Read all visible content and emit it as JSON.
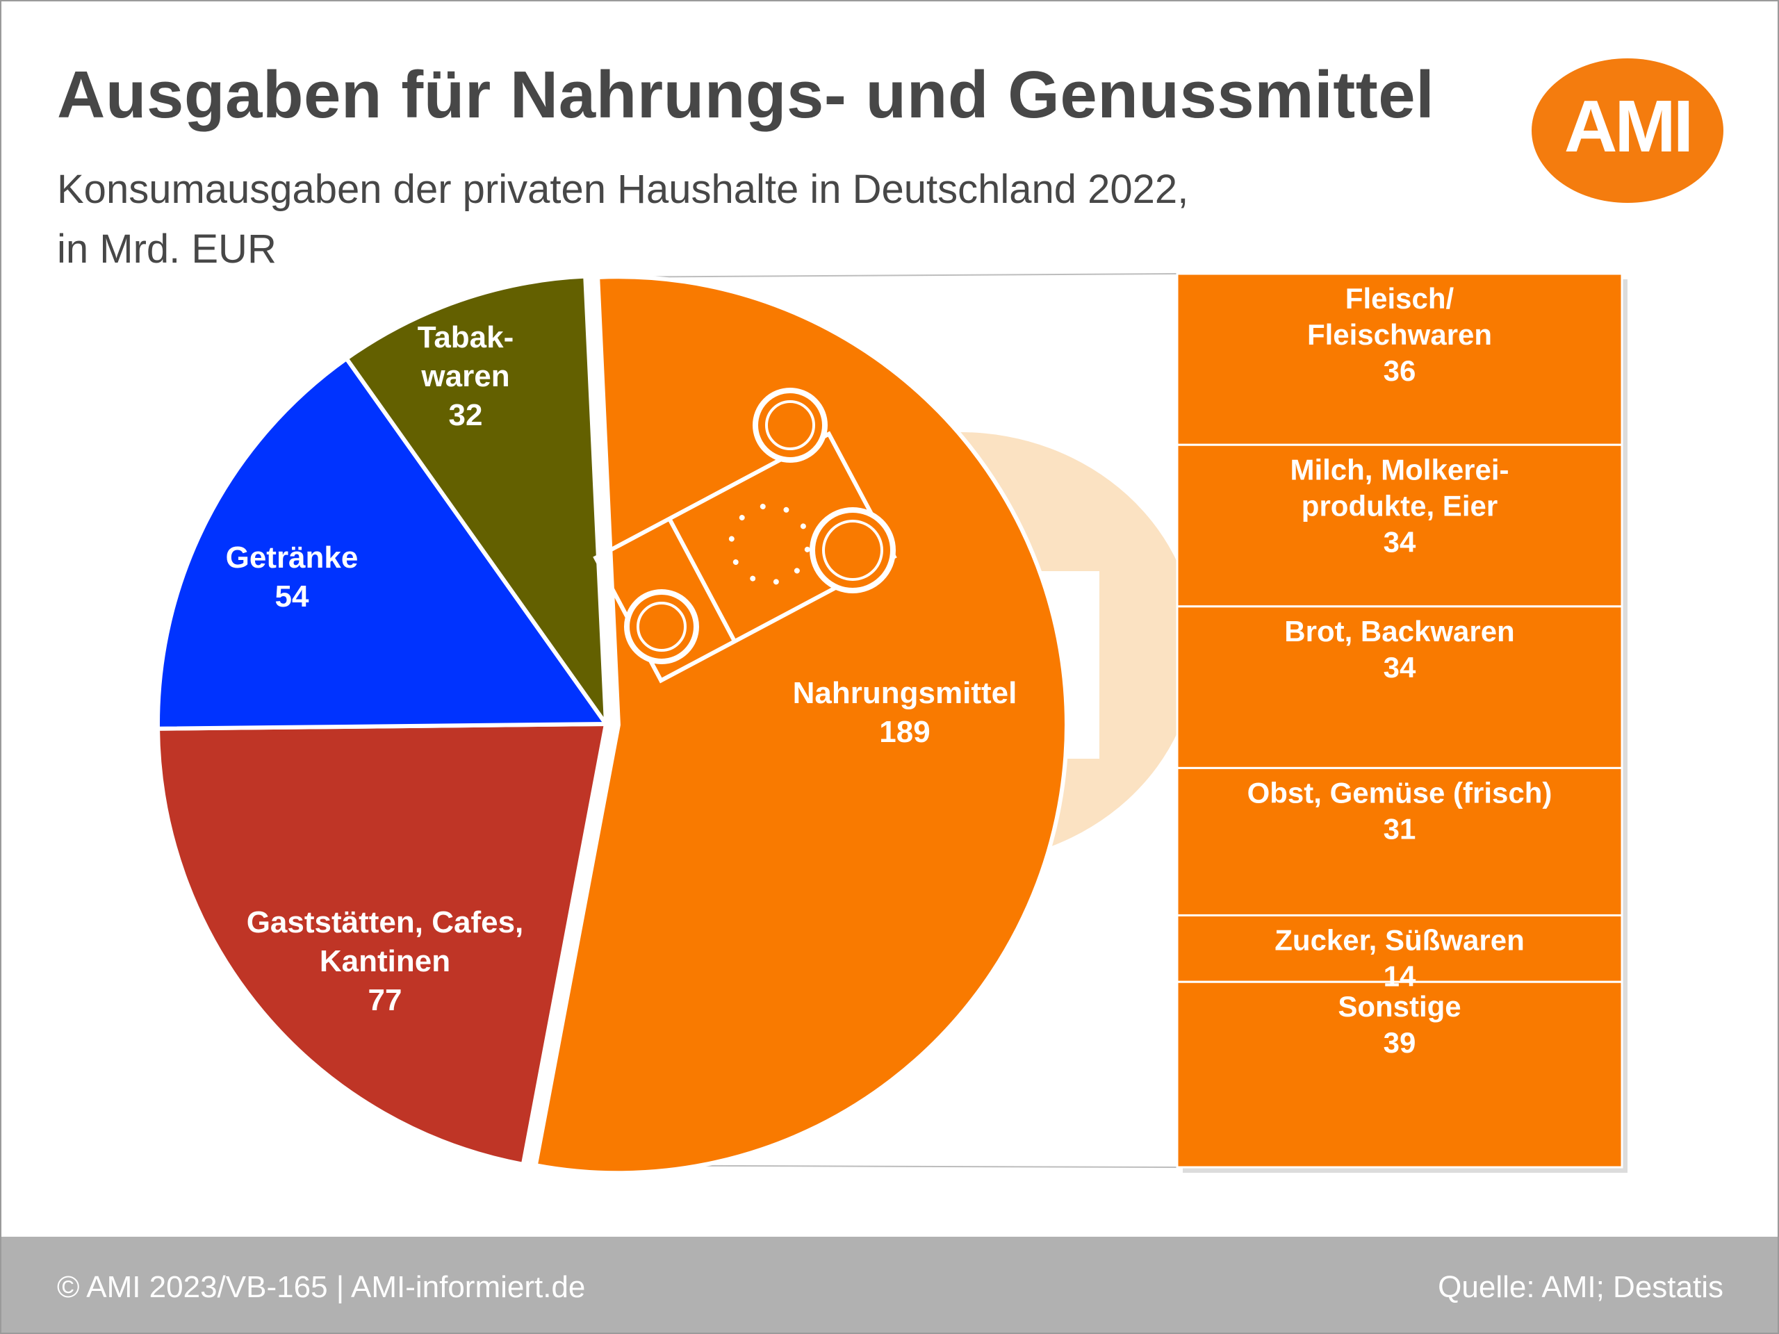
{
  "header": {
    "title": "Ausgaben für Nahrungs- und Genussmittel",
    "subtitle_line1": "Konsumausgaben der privaten Haushalte in Deutschland 2022,",
    "subtitle_line2": "in Mrd. EUR"
  },
  "logo": {
    "text": "AMI",
    "color": "#F47C0E"
  },
  "footer": {
    "left": "© AMI 2023/VB-165 | AMI-informiert.de",
    "right": "Quelle: AMI; Destatis",
    "background": "#B1B1B1"
  },
  "chart_data": [
    {
      "type": "pie",
      "unit": "Mrd. EUR",
      "slices": [
        {
          "label_lines": [
            "Nahrungsmittel"
          ],
          "value": 189,
          "color": "#F97A00"
        },
        {
          "label_lines": [
            "Gaststätten, Cafes,",
            "Kantinen"
          ],
          "value": 77,
          "color": "#BF3526"
        },
        {
          "label_lines": [
            "Getränke"
          ],
          "value": 54,
          "color": "#0033FF"
        },
        {
          "label_lines": [
            "Tabak-",
            "waren"
          ],
          "value": 32,
          "color": "#636000"
        }
      ]
    },
    {
      "type": "bar",
      "stacked": true,
      "breakdown_of": "Nahrungsmittel",
      "color": "#F97A00",
      "segments": [
        {
          "label_lines": [
            "Fleisch/",
            "Fleischwaren"
          ],
          "value": 36
        },
        {
          "label_lines": [
            "Milch, Molkerei-",
            "produkte, Eier"
          ],
          "value": 34
        },
        {
          "label_lines": [
            "Brot, Backwaren"
          ],
          "value": 34
        },
        {
          "label_lines": [
            "Obst, Gemüse (frisch)"
          ],
          "value": 31
        },
        {
          "label_lines": [
            "Zucker, Süßwaren"
          ],
          "value": 14
        },
        {
          "label_lines": [
            "Sonstige"
          ],
          "value": 39
        }
      ]
    }
  ]
}
